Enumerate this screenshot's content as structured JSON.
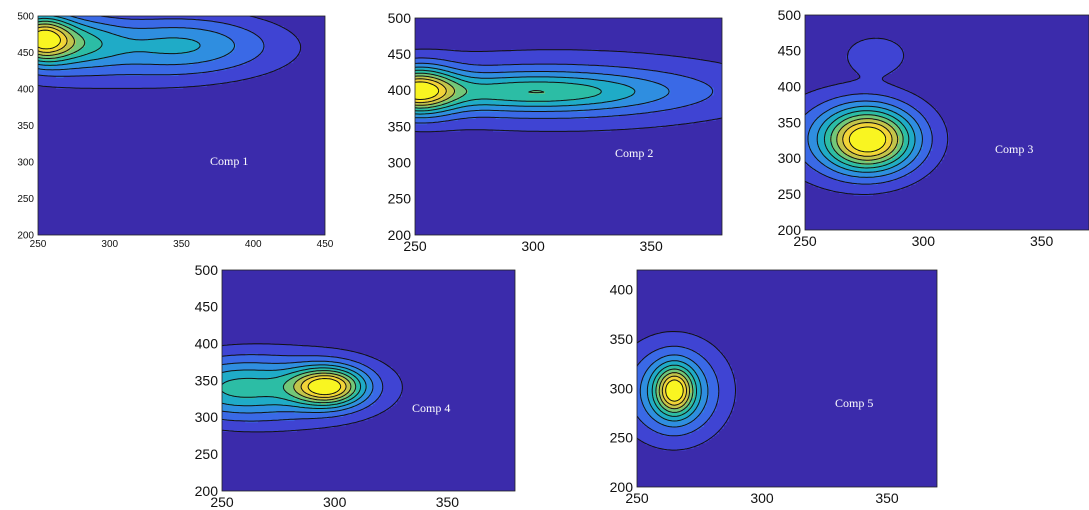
{
  "colors": {
    "background": "#3b2bab",
    "levels": [
      "#3b2bab",
      "#3f44d3",
      "#3a69e6",
      "#2f8ee0",
      "#1fabc7",
      "#2cbda5",
      "#73c778",
      "#c2c44a",
      "#f2d338",
      "#f9f521"
    ],
    "contour_line": "#111111"
  },
  "chart_data": [
    {
      "type": "heatmap",
      "subtype": "contour",
      "label": "Comp 1",
      "xlim": [
        250,
        450
      ],
      "ylim": [
        200,
        500
      ],
      "xticks": [
        250,
        300,
        350,
        400,
        450
      ],
      "yticks": [
        200,
        250,
        300,
        350,
        400,
        450,
        500
      ],
      "peaks": [
        {
          "x": 252,
          "y": 470,
          "sx": 14,
          "sy": 22,
          "a": 1.0
        },
        {
          "x": 275,
          "y": 465,
          "sx": 22,
          "sy": 24,
          "a": 0.48
        },
        {
          "x": 350,
          "y": 462,
          "sx": 42,
          "sy": 26,
          "a": 0.42
        },
        {
          "x": 300,
          "y": 445,
          "sx": 80,
          "sy": 35,
          "a": 0.18
        }
      ]
    },
    {
      "type": "heatmap",
      "subtype": "contour",
      "label": "Comp 2",
      "xlim": [
        250,
        380
      ],
      "ylim": [
        200,
        500
      ],
      "xticks": [
        250,
        300,
        350
      ],
      "yticks": [
        200,
        250,
        300,
        350,
        400,
        450,
        500
      ],
      "peaks": [
        {
          "x": 251,
          "y": 400,
          "sx": 11,
          "sy": 22,
          "a": 0.78
        },
        {
          "x": 300,
          "y": 398,
          "sx": 38,
          "sy": 18,
          "a": 0.42
        },
        {
          "x": 310,
          "y": 400,
          "sx": 65,
          "sy": 40,
          "a": 0.2
        }
      ]
    },
    {
      "type": "heatmap",
      "subtype": "contour",
      "label": "Comp 3",
      "xlim": [
        250,
        370
      ],
      "ylim": [
        200,
        500
      ],
      "xticks": [
        250,
        300,
        350
      ],
      "yticks": [
        200,
        250,
        300,
        350,
        400,
        450,
        500
      ],
      "peaks": [
        {
          "x": 277,
          "y": 326,
          "sx": 13,
          "sy": 30,
          "a": 1.0
        },
        {
          "x": 268,
          "y": 330,
          "sx": 24,
          "sy": 46,
          "a": 0.22
        },
        {
          "x": 280,
          "y": 445,
          "sx": 9,
          "sy": 18,
          "a": 0.18
        }
      ]
    },
    {
      "type": "heatmap",
      "subtype": "contour",
      "label": "Comp 4",
      "xlim": [
        250,
        380
      ],
      "ylim": [
        200,
        500
      ],
      "xticks": [
        250,
        300,
        350
      ],
      "yticks": [
        200,
        250,
        300,
        350,
        400,
        450,
        500
      ],
      "peaks": [
        {
          "x": 297,
          "y": 342,
          "sx": 11,
          "sy": 18,
          "a": 0.9
        },
        {
          "x": 255,
          "y": 340,
          "sx": 22,
          "sy": 28,
          "a": 0.45
        },
        {
          "x": 285,
          "y": 340,
          "sx": 30,
          "sy": 35,
          "a": 0.22
        }
      ]
    },
    {
      "type": "heatmap",
      "subtype": "contour",
      "label": "Comp 5",
      "xlim": [
        250,
        370
      ],
      "ylim": [
        200,
        420
      ],
      "xticks": [
        250,
        300,
        350
      ],
      "yticks": [
        200,
        250,
        300,
        350,
        400
      ],
      "peaks": [
        {
          "x": 265,
          "y": 298,
          "sx": 5,
          "sy": 16,
          "a": 0.85
        },
        {
          "x": 265,
          "y": 296,
          "sx": 11,
          "sy": 28,
          "a": 0.5
        },
        {
          "x": 264,
          "y": 300,
          "sx": 17,
          "sy": 38,
          "a": 0.2
        }
      ]
    }
  ]
}
